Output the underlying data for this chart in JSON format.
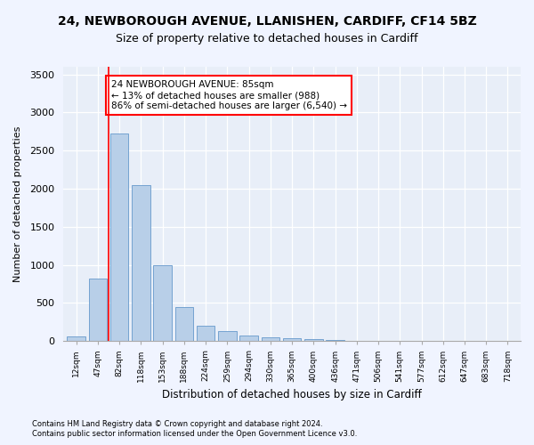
{
  "title": "24, NEWBOROUGH AVENUE, LLANISHEN, CARDIFF, CF14 5BZ",
  "subtitle": "Size of property relative to detached houses in Cardiff",
  "xlabel": "Distribution of detached houses by size in Cardiff",
  "ylabel": "Number of detached properties",
  "footnote1": "Contains HM Land Registry data © Crown copyright and database right 2024.",
  "footnote2": "Contains public sector information licensed under the Open Government Licence v3.0.",
  "bar_labels": [
    "12sqm",
    "47sqm",
    "82sqm",
    "118sqm",
    "153sqm",
    "188sqm",
    "224sqm",
    "259sqm",
    "294sqm",
    "330sqm",
    "365sqm",
    "400sqm",
    "436sqm",
    "471sqm",
    "506sqm",
    "541sqm",
    "577sqm",
    "612sqm",
    "647sqm",
    "683sqm",
    "718sqm"
  ],
  "bar_values": [
    60,
    820,
    2720,
    2050,
    1000,
    450,
    200,
    130,
    70,
    55,
    40,
    25,
    15,
    8,
    5,
    3,
    2,
    1,
    1,
    0,
    0
  ],
  "bar_color": "#b8cfe8",
  "bar_edge_color": "#6699cc",
  "property_line_x": 1.5,
  "property_line_color": "red",
  "annotation_text": "24 NEWBOROUGH AVENUE: 85sqm\n← 13% of detached houses are smaller (988)\n86% of semi-detached houses are larger (6,540) →",
  "annotation_box_color": "white",
  "annotation_box_edge": "red",
  "ylim": [
    0,
    3600
  ],
  "yticks": [
    0,
    500,
    1000,
    1500,
    2000,
    2500,
    3000,
    3500
  ],
  "bg_color": "#f0f4ff",
  "plot_bg_color": "#e8eef8",
  "title_fontsize": 10,
  "subtitle_fontsize": 9
}
